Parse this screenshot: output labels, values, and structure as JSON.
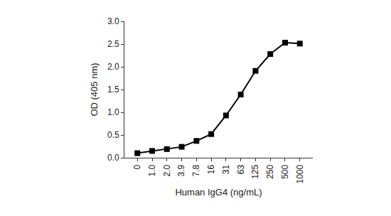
{
  "chart_data": {
    "type": "line",
    "x_label": "Human IgG4 (ng/mL)",
    "y_label": "OD (405 nm)",
    "categories": [
      "0",
      "1.0",
      "2.0",
      "3.9",
      "7.8",
      "16",
      "31",
      "63",
      "125",
      "250",
      "500",
      "1000"
    ],
    "values": [
      0.1,
      0.15,
      0.19,
      0.24,
      0.37,
      0.52,
      0.93,
      1.39,
      1.91,
      2.28,
      2.53,
      2.51
    ],
    "color": "#000000",
    "marker": "square",
    "line_style": "solid",
    "ylim": [
      0,
      3.0
    ],
    "yticks": [
      {
        "value": 0,
        "label": "0.0"
      },
      {
        "value": 0.5,
        "label": "0.5"
      },
      {
        "value": 1.0,
        "label": "1.0"
      },
      {
        "value": 1.5,
        "label": "1.5"
      },
      {
        "value": 2.0,
        "label": "2.0"
      },
      {
        "value": 2.5,
        "label": "2.5"
      },
      {
        "value": 3.0,
        "label": "3.0"
      }
    ],
    "grid": false
  }
}
